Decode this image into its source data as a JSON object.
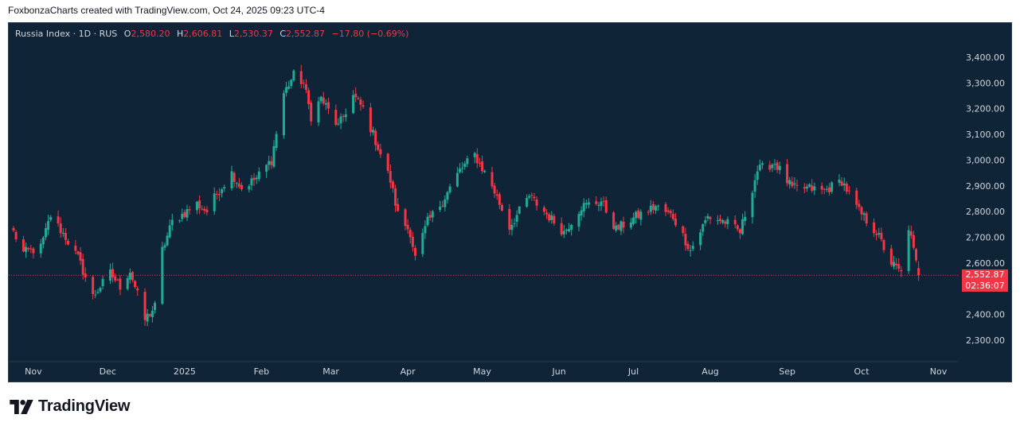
{
  "caption": "FoxbonzaCharts created with TradingView.com, Oct 24, 2025 09:23 UTC-4",
  "brand": {
    "name": "TradingView",
    "logo_icon": "tradingview-logo-icon"
  },
  "colors": {
    "background": "#0f2537",
    "up": "#22ab94",
    "down": "#f23645",
    "text": "#d1d4dc",
    "last_price_line": "#f23645"
  },
  "legend": {
    "symbol": "Russia Index · 1D · RUS",
    "o_label": "O",
    "o": "2,580.20",
    "h_label": "H",
    "h": "2,606.81",
    "l_label": "L",
    "l": "2,530.37",
    "c_label": "C",
    "c": "2,552.87",
    "change": "−17.80 (−0.69%)"
  },
  "price_tag": {
    "price": "2,552.87",
    "countdown": "02:36:07"
  },
  "chart_data": {
    "type": "candlestick",
    "ylim": [
      2260,
      3440
    ],
    "ytick_values": [
      2300,
      2400,
      2500,
      2600,
      2700,
      2800,
      2900,
      3000,
      3100,
      3200,
      3300,
      3400
    ],
    "ytick_labels": [
      "2,300.00",
      "2,400.00",
      "2,500.00",
      "2,600.00",
      "2,700.00",
      "2,800.00",
      "2,900.00",
      "3,000.00",
      "3,100.00",
      "3,200.00",
      "3,300.00",
      "3,400.00"
    ],
    "hidden_ytick_values": [
      2500
    ],
    "x_start": "2024-10-24",
    "x_end": "2025-11-05",
    "xtick_dates": [
      "2024-11-01",
      "2024-12-01",
      "2025-01-01",
      "2025-02-01",
      "2025-03-01",
      "2025-04-01",
      "2025-05-01",
      "2025-06-01",
      "2025-07-01",
      "2025-08-01",
      "2025-09-01",
      "2025-10-01",
      "2025-11-01"
    ],
    "xtick_labels": [
      "Nov",
      "Dec",
      "2025",
      "Feb",
      "Mar",
      "Apr",
      "May",
      "Jun",
      "Jul",
      "Aug",
      "Sep",
      "Oct",
      "Nov"
    ],
    "last_price": 2552.87,
    "close_anchors": [
      [
        "2024-10-24",
        2720
      ],
      [
        "2024-10-28",
        2640
      ],
      [
        "2024-11-04",
        2660
      ],
      [
        "2024-11-08",
        2785
      ],
      [
        "2024-11-14",
        2700
      ],
      [
        "2024-11-19",
        2620
      ],
      [
        "2024-11-25",
        2470
      ],
      [
        "2024-12-02",
        2560
      ],
      [
        "2024-12-06",
        2510
      ],
      [
        "2024-12-10",
        2570
      ],
      [
        "2024-12-16",
        2380
      ],
      [
        "2024-12-20",
        2430
      ],
      [
        "2024-12-23",
        2650
      ],
      [
        "2024-12-27",
        2760
      ],
      [
        "2025-01-06",
        2830
      ],
      [
        "2025-01-10",
        2800
      ],
      [
        "2025-01-14",
        2870
      ],
      [
        "2025-01-20",
        2950
      ],
      [
        "2025-01-24",
        2890
      ],
      [
        "2025-01-30",
        2930
      ],
      [
        "2025-02-05",
        3000
      ],
      [
        "2025-02-10",
        3260
      ],
      [
        "2025-02-14",
        3330
      ],
      [
        "2025-02-18",
        3300
      ],
      [
        "2025-02-21",
        3170
      ],
      [
        "2025-02-25",
        3240
      ],
      [
        "2025-03-04",
        3130
      ],
      [
        "2025-03-10",
        3250
      ],
      [
        "2025-03-14",
        3200
      ],
      [
        "2025-03-20",
        3050
      ],
      [
        "2025-03-25",
        2920
      ],
      [
        "2025-03-28",
        2790
      ],
      [
        "2025-04-02",
        2720
      ],
      [
        "2025-04-04",
        2620
      ],
      [
        "2025-04-09",
        2760
      ],
      [
        "2025-04-15",
        2840
      ],
      [
        "2025-04-22",
        2960
      ],
      [
        "2025-04-28",
        3020
      ],
      [
        "2025-05-05",
        2900
      ],
      [
        "2025-05-12",
        2740
      ],
      [
        "2025-05-20",
        2860
      ],
      [
        "2025-05-27",
        2790
      ],
      [
        "2025-06-03",
        2720
      ],
      [
        "2025-06-10",
        2820
      ],
      [
        "2025-06-18",
        2840
      ],
      [
        "2025-06-24",
        2730
      ],
      [
        "2025-07-02",
        2780
      ],
      [
        "2025-07-10",
        2820
      ],
      [
        "2025-07-17",
        2780
      ],
      [
        "2025-07-24",
        2650
      ],
      [
        "2025-07-31",
        2780
      ],
      [
        "2025-08-07",
        2760
      ],
      [
        "2025-08-13",
        2720
      ],
      [
        "2025-08-20",
        2960
      ],
      [
        "2025-08-27",
        2990
      ],
      [
        "2025-09-03",
        2890
      ],
      [
        "2025-09-10",
        2890
      ],
      [
        "2025-09-16",
        2880
      ],
      [
        "2025-09-23",
        2920
      ],
      [
        "2025-09-30",
        2800
      ],
      [
        "2025-10-07",
        2720
      ],
      [
        "2025-10-13",
        2600
      ],
      [
        "2025-10-17",
        2560
      ],
      [
        "2025-10-20",
        2740
      ],
      [
        "2025-10-24",
        2552.87
      ]
    ]
  }
}
